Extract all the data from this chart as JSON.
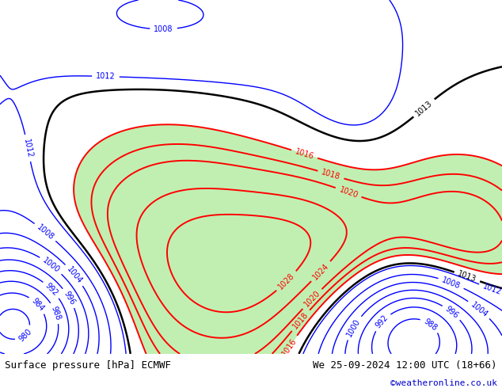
{
  "title_left": "Surface pressure [hPa] ECMWF",
  "title_right": "We 25-09-2024 12:00 UTC (18+66)",
  "copyright": "©weatheronline.co.uk",
  "bg_color": "#d4dce8",
  "land_color": "#b8b8b8",
  "high_fill_color": "#bbeeaa",
  "footer_bg": "#ffffff",
  "footer_text_color": "#000000",
  "copyright_color": "#0000cc",
  "lon_min": 95,
  "lon_max": 185,
  "lat_min": -55,
  "lat_max": 5,
  "contour_linewidth_red": 1.4,
  "contour_linewidth_blue": 1.0,
  "contour_linewidth_black": 1.8,
  "label_fontsize": 7,
  "footer_fontsize": 9,
  "fig_width": 6.34,
  "fig_height": 4.9,
  "dpi": 100
}
